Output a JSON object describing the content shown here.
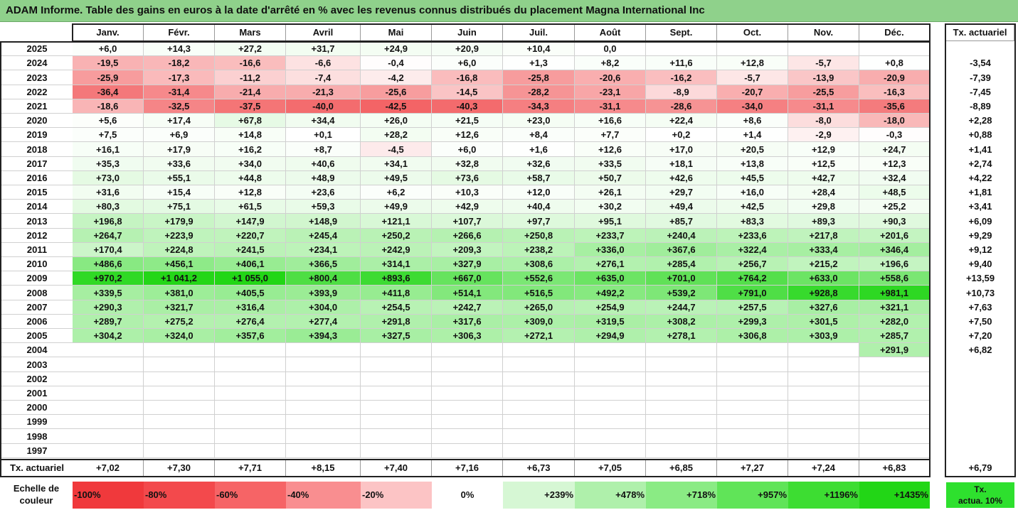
{
  "title": "ADAM Informe. Table des gains en euros à la date d'arrêté en % avec les revenus connus distribués du placement Magna International Inc",
  "chart_data": {
    "type": "heatmap",
    "months": [
      "Janv.",
      "Févr.",
      "Mars",
      "Avril",
      "Mai",
      "Juin",
      "Juil.",
      "Août",
      "Sept.",
      "Oct.",
      "Nov.",
      "Déc."
    ],
    "annual_header": "Tx. actuariel",
    "rows": [
      {
        "year": "2025",
        "values": [
          "+6,0",
          "+14,3",
          "+27,2",
          "+31,7",
          "+24,9",
          "+20,9",
          "+10,4",
          "0,0",
          "",
          "",
          "",
          ""
        ],
        "tx": ""
      },
      {
        "year": "2024",
        "values": [
          "-19,5",
          "-18,2",
          "-16,6",
          "-6,6",
          "-0,4",
          "+6,0",
          "+1,3",
          "+8,2",
          "+11,6",
          "+12,8",
          "-5,7",
          "+0,8"
        ],
        "tx": "-3,54"
      },
      {
        "year": "2023",
        "values": [
          "-25,9",
          "-17,3",
          "-11,2",
          "-7,4",
          "-4,2",
          "-16,8",
          "-25,8",
          "-20,6",
          "-16,2",
          "-5,7",
          "-13,9",
          "-20,9"
        ],
        "tx": "-7,39"
      },
      {
        "year": "2022",
        "values": [
          "-36,4",
          "-31,4",
          "-21,4",
          "-21,3",
          "-25,6",
          "-14,5",
          "-28,2",
          "-23,1",
          "-8,9",
          "-20,7",
          "-25,5",
          "-16,3"
        ],
        "tx": "-7,45"
      },
      {
        "year": "2021",
        "values": [
          "-18,6",
          "-32,5",
          "-37,5",
          "-40,0",
          "-42,5",
          "-40,3",
          "-34,3",
          "-31,1",
          "-28,6",
          "-34,0",
          "-31,1",
          "-35,6"
        ],
        "tx": "-8,89"
      },
      {
        "year": "2020",
        "values": [
          "+5,6",
          "+17,4",
          "+67,8",
          "+34,4",
          "+26,0",
          "+21,5",
          "+23,0",
          "+16,6",
          "+22,4",
          "+8,6",
          "-8,0",
          "-18,0"
        ],
        "tx": "+2,28"
      },
      {
        "year": "2019",
        "values": [
          "+7,5",
          "+6,9",
          "+14,8",
          "+0,1",
          "+28,2",
          "+12,6",
          "+8,4",
          "+7,7",
          "+0,2",
          "+1,4",
          "-2,9",
          "-0,3"
        ],
        "tx": "+0,88"
      },
      {
        "year": "2018",
        "values": [
          "+16,1",
          "+17,9",
          "+16,2",
          "+8,7",
          "-4,5",
          "+6,0",
          "+1,6",
          "+12,6",
          "+17,0",
          "+20,5",
          "+12,9",
          "+24,7"
        ],
        "tx": "+1,41"
      },
      {
        "year": "2017",
        "values": [
          "+35,3",
          "+33,6",
          "+34,0",
          "+40,6",
          "+34,1",
          "+32,8",
          "+32,6",
          "+33,5",
          "+18,1",
          "+13,8",
          "+12,5",
          "+12,3"
        ],
        "tx": "+2,74"
      },
      {
        "year": "2016",
        "values": [
          "+73,0",
          "+55,1",
          "+44,8",
          "+48,9",
          "+49,5",
          "+73,6",
          "+58,7",
          "+50,7",
          "+42,6",
          "+45,5",
          "+42,7",
          "+32,4"
        ],
        "tx": "+4,22"
      },
      {
        "year": "2015",
        "values": [
          "+31,6",
          "+15,4",
          "+12,8",
          "+23,6",
          "+6,2",
          "+10,3",
          "+12,0",
          "+26,1",
          "+29,7",
          "+16,0",
          "+28,4",
          "+48,5"
        ],
        "tx": "+1,81"
      },
      {
        "year": "2014",
        "values": [
          "+80,3",
          "+75,1",
          "+61,5",
          "+59,3",
          "+49,9",
          "+42,9",
          "+40,4",
          "+30,2",
          "+49,4",
          "+42,5",
          "+29,8",
          "+25,2"
        ],
        "tx": "+3,41"
      },
      {
        "year": "2013",
        "values": [
          "+196,8",
          "+179,9",
          "+147,9",
          "+148,9",
          "+121,1",
          "+107,7",
          "+97,7",
          "+95,1",
          "+85,7",
          "+83,3",
          "+89,3",
          "+90,3"
        ],
        "tx": "+6,09"
      },
      {
        "year": "2012",
        "values": [
          "+264,7",
          "+223,9",
          "+220,7",
          "+245,4",
          "+250,2",
          "+266,6",
          "+250,8",
          "+233,7",
          "+240,4",
          "+233,6",
          "+217,8",
          "+201,6"
        ],
        "tx": "+9,29"
      },
      {
        "year": "2011",
        "values": [
          "+170,4",
          "+224,8",
          "+241,5",
          "+234,1",
          "+242,9",
          "+209,3",
          "+238,2",
          "+336,0",
          "+367,6",
          "+322,4",
          "+333,4",
          "+346,4"
        ],
        "tx": "+9,12"
      },
      {
        "year": "2010",
        "values": [
          "+486,6",
          "+456,1",
          "+406,1",
          "+366,5",
          "+314,1",
          "+327,9",
          "+308,6",
          "+276,1",
          "+285,4",
          "+256,7",
          "+215,2",
          "+196,6"
        ],
        "tx": "+9,40"
      },
      {
        "year": "2009",
        "values": [
          "+970,2",
          "+1 041,2",
          "+1 055,0",
          "+800,4",
          "+893,6",
          "+667,0",
          "+552,6",
          "+635,0",
          "+701,0",
          "+764,2",
          "+633,0",
          "+558,6"
        ],
        "tx": "+13,59"
      },
      {
        "year": "2008",
        "values": [
          "+339,5",
          "+381,0",
          "+405,5",
          "+393,9",
          "+411,8",
          "+514,1",
          "+516,5",
          "+492,2",
          "+539,2",
          "+791,0",
          "+928,8",
          "+981,1"
        ],
        "tx": "+10,73"
      },
      {
        "year": "2007",
        "values": [
          "+290,3",
          "+321,7",
          "+316,4",
          "+304,0",
          "+254,5",
          "+242,7",
          "+265,0",
          "+254,9",
          "+244,7",
          "+257,5",
          "+327,6",
          "+321,1"
        ],
        "tx": "+7,63"
      },
      {
        "year": "2006",
        "values": [
          "+289,7",
          "+275,2",
          "+276,4",
          "+277,4",
          "+291,8",
          "+317,6",
          "+309,0",
          "+319,5",
          "+308,2",
          "+299,3",
          "+301,5",
          "+282,0"
        ],
        "tx": "+7,50"
      },
      {
        "year": "2005",
        "values": [
          "+304,2",
          "+324,0",
          "+357,6",
          "+394,3",
          "+327,5",
          "+306,3",
          "+272,1",
          "+294,9",
          "+278,1",
          "+306,8",
          "+303,9",
          "+285,7"
        ],
        "tx": "+7,20"
      },
      {
        "year": "2004",
        "values": [
          "",
          "",
          "",
          "",
          "",
          "",
          "",
          "",
          "",
          "",
          "",
          "+291,9"
        ],
        "tx": "+6,82"
      },
      {
        "year": "2003",
        "values": [
          "",
          "",
          "",
          "",
          "",
          "",
          "",
          "",
          "",
          "",
          "",
          ""
        ],
        "tx": ""
      },
      {
        "year": "2002",
        "values": [
          "",
          "",
          "",
          "",
          "",
          "",
          "",
          "",
          "",
          "",
          "",
          ""
        ],
        "tx": ""
      },
      {
        "year": "2001",
        "values": [
          "",
          "",
          "",
          "",
          "",
          "",
          "",
          "",
          "",
          "",
          "",
          ""
        ],
        "tx": ""
      },
      {
        "year": "2000",
        "values": [
          "",
          "",
          "",
          "",
          "",
          "",
          "",
          "",
          "",
          "",
          "",
          ""
        ],
        "tx": ""
      },
      {
        "year": "1999",
        "values": [
          "",
          "",
          "",
          "",
          "",
          "",
          "",
          "",
          "",
          "",
          "",
          ""
        ],
        "tx": ""
      },
      {
        "year": "1998",
        "values": [
          "",
          "",
          "",
          "",
          "",
          "",
          "",
          "",
          "",
          "",
          "",
          ""
        ],
        "tx": ""
      },
      {
        "year": "1997",
        "values": [
          "",
          "",
          "",
          "",
          "",
          "",
          "",
          "",
          "",
          "",
          "",
          ""
        ],
        "tx": ""
      }
    ],
    "footer": {
      "label": "Tx. actuariel",
      "values": [
        "+7,02",
        "+7,30",
        "+7,71",
        "+8,15",
        "+7,40",
        "+7,16",
        "+6,73",
        "+7,05",
        "+6,85",
        "+7,27",
        "+7,24",
        "+6,83"
      ],
      "total": "+6,79"
    },
    "color_scale": {
      "label_line1": "Echelle de",
      "label_line2": "couleur",
      "stops": [
        {
          "label": "-100%",
          "color": "#f0393c",
          "align": "left"
        },
        {
          "label": "-80%",
          "color": "#f3494c",
          "align": "left"
        },
        {
          "label": "-60%",
          "color": "#f66466",
          "align": "left"
        },
        {
          "label": "-40%",
          "color": "#f98e90",
          "align": "left"
        },
        {
          "label": "-20%",
          "color": "#fcc4c5",
          "align": "left"
        },
        {
          "label": "0%",
          "color": "#ffffff",
          "align": "center"
        },
        {
          "label": "+239%",
          "color": "#d6f7d4",
          "align": "right"
        },
        {
          "label": "+478%",
          "color": "#aff0ab",
          "align": "right"
        },
        {
          "label": "+718%",
          "color": "#8aeb84",
          "align": "right"
        },
        {
          "label": "+957%",
          "color": "#60e458",
          "align": "right"
        },
        {
          "label": "+1196%",
          "color": "#3ddd32",
          "align": "right"
        },
        {
          "label": "+1435%",
          "color": "#22d616",
          "align": "right"
        }
      ],
      "tx_label_line1": "Tx.",
      "tx_label_line2": "actua. 10%"
    },
    "colors": {
      "negative_max": "#f0393c",
      "positive_max": "#22d616",
      "title_bg": "#8fd18b"
    }
  }
}
